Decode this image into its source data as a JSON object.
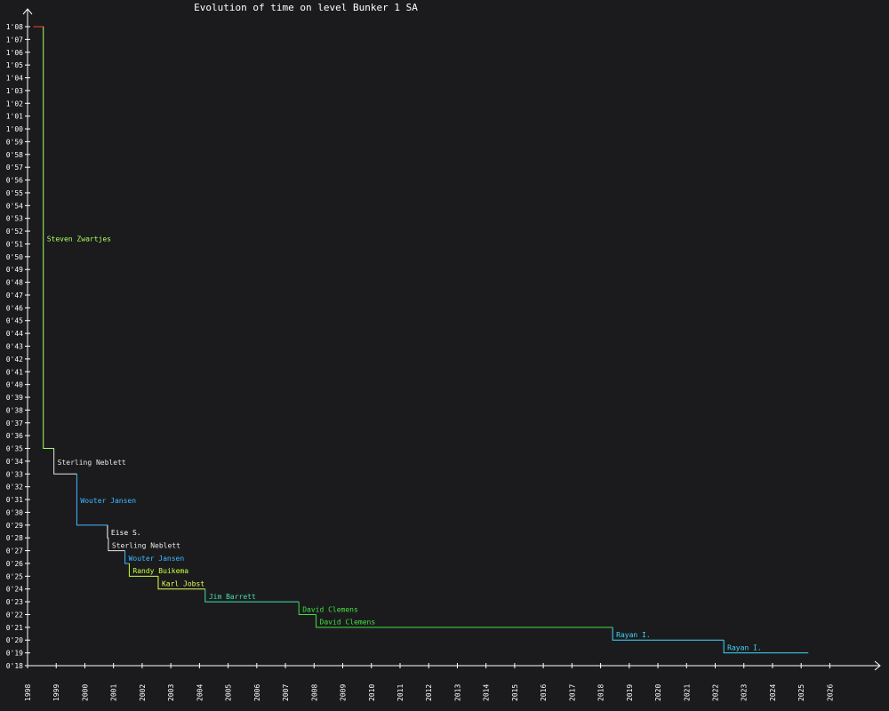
{
  "chart_data": {
    "type": "line",
    "step": true,
    "title": "Evolution of time on level Bunker 1 SA",
    "xlabel": "",
    "ylabel": "",
    "x_ticks": [
      "1998",
      "1999",
      "2000",
      "2001",
      "2002",
      "2003",
      "2004",
      "2005",
      "2006",
      "2007",
      "2008",
      "2009",
      "2010",
      "2011",
      "2012",
      "2013",
      "2014",
      "2015",
      "2016",
      "2017",
      "2018",
      "2019",
      "2020",
      "2021",
      "2022",
      "2023",
      "2024",
      "2025",
      "2026"
    ],
    "y_ticks": [
      "0'18",
      "0'19",
      "0'20",
      "0'21",
      "0'22",
      "0'23",
      "0'24",
      "0'25",
      "0'26",
      "0'27",
      "0'28",
      "0'29",
      "0'30",
      "0'31",
      "0'32",
      "0'33",
      "0'34",
      "0'35",
      "0'36",
      "0'37",
      "0'38",
      "0'39",
      "0'40",
      "0'41",
      "0'42",
      "0'43",
      "0'44",
      "0'45",
      "0'46",
      "0'47",
      "0'48",
      "0'49",
      "0'50",
      "0'51",
      "0'52",
      "0'53",
      "0'54",
      "0'55",
      "0'56",
      "0'57",
      "0'58",
      "0'59",
      "1'00",
      "1'01",
      "1'02",
      "1'03",
      "1'04",
      "1'05",
      "1'06",
      "1'07",
      "1'08"
    ],
    "xlim": [
      1998,
      2027.6
    ],
    "ylim": [
      18,
      68
    ],
    "grid": false,
    "legend": "none",
    "initial": {
      "start": 1998.2,
      "end": 1998.55,
      "time": 68,
      "color": "#ff3c3c"
    },
    "records": [
      {
        "name": "Steven Zwartjes",
        "start": 1998.55,
        "end": 1998.92,
        "time": 35,
        "color": "#a8ff60"
      },
      {
        "name": "Sterling Neblett",
        "start": 1998.92,
        "end": 1999.72,
        "time": 33,
        "color": "#e6e6e6"
      },
      {
        "name": "Wouter Jansen",
        "start": 1999.72,
        "end": 2000.79,
        "time": 29,
        "color": "#40b8ff"
      },
      {
        "name": "Eise S.",
        "start": 2000.79,
        "end": 2000.82,
        "time": 28,
        "color": "#ffffff"
      },
      {
        "name": "Sterling Neblett",
        "start": 2000.82,
        "end": 2001.4,
        "time": 27,
        "color": "#e6e6e6"
      },
      {
        "name": "Wouter Jansen",
        "start": 2001.4,
        "end": 2001.55,
        "time": 26,
        "color": "#40b8ff"
      },
      {
        "name": "Randy Buikema",
        "start": 2001.55,
        "end": 2002.56,
        "time": 25,
        "color": "#c8ff40"
      },
      {
        "name": "Karl Jobst",
        "start": 2002.56,
        "end": 2004.2,
        "time": 24,
        "color": "#e6ff50"
      },
      {
        "name": "Jim Barrett",
        "start": 2004.2,
        "end": 2007.47,
        "time": 23,
        "color": "#40e0b0"
      },
      {
        "name": "David Clemens",
        "start": 2007.47,
        "end": 2008.07,
        "time": 22,
        "color": "#40e040"
      },
      {
        "name": "David Clemens",
        "start": 2008.07,
        "end": 2018.42,
        "time": 21,
        "color": "#40e040"
      },
      {
        "name": "Rayan I.",
        "start": 2018.42,
        "end": 2022.3,
        "time": 20,
        "color": "#40d8ff"
      },
      {
        "name": "Rayan I.",
        "start": 2022.3,
        "end": 2025.25,
        "time": 19,
        "color": "#40d8ff"
      }
    ],
    "colors": {
      "background": "#1b1b1d",
      "axis": "#ffffff",
      "text": "#ffffff"
    }
  }
}
